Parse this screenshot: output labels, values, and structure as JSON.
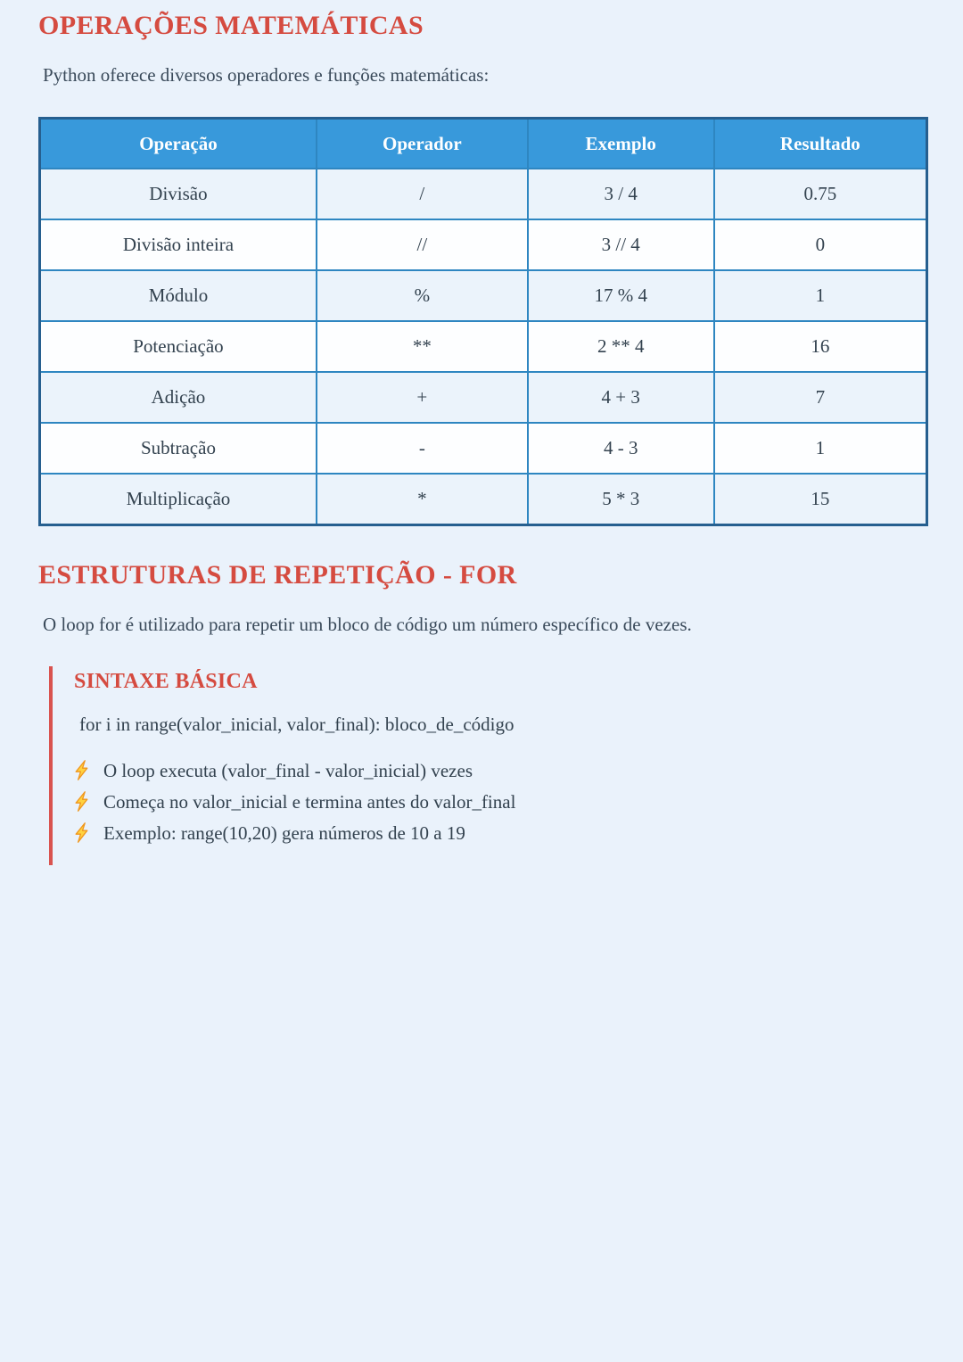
{
  "page": {
    "background_color": "#eaf2fb",
    "accent_red": "#d54b40",
    "accent_blue": "#3899db",
    "table_border_outer": "#265f8f",
    "table_border_inner": "#2e86c1"
  },
  "icons": {
    "bullet": "lightning-bolt-icon",
    "bullet_fill": "#ffd23f",
    "bullet_stroke": "#f0971e"
  },
  "section_operations": {
    "title": "OPERAÇÕES MATEMÁTICAS",
    "intro": "Python oferece diversos operadores e funções matemáticas:"
  },
  "table": {
    "headers": [
      "Operação",
      "Operador",
      "Exemplo",
      "Resultado"
    ],
    "rows": [
      [
        "Divisão",
        "/",
        "3 / 4",
        "0.75"
      ],
      [
        "Divisão inteira",
        "//",
        "3 // 4",
        "0"
      ],
      [
        "Módulo",
        "%",
        "17 % 4",
        "1"
      ],
      [
        "Potenciação",
        "**",
        "2 ** 4",
        "16"
      ],
      [
        "Adição",
        "+",
        "4 + 3",
        "7"
      ],
      [
        "Subtração",
        "-",
        "4 - 3",
        "1"
      ],
      [
        "Multiplicação",
        "*",
        "5 * 3",
        "15"
      ]
    ]
  },
  "section_for": {
    "title": "ESTRUTURAS DE REPETIÇÃO - FOR",
    "intro": "O loop for é utilizado para repetir um bloco de código um número específico de vezes.",
    "syntax_box": {
      "title": "SINTAXE BÁSICA",
      "code": "for i in range(valor_inicial, valor_final): bloco_de_código",
      "bullets": [
        "O loop executa (valor_final - valor_inicial) vezes",
        "Começa no valor_inicial e termina antes do valor_final",
        "Exemplo: range(10,20) gera números de 10 a 19"
      ]
    }
  }
}
